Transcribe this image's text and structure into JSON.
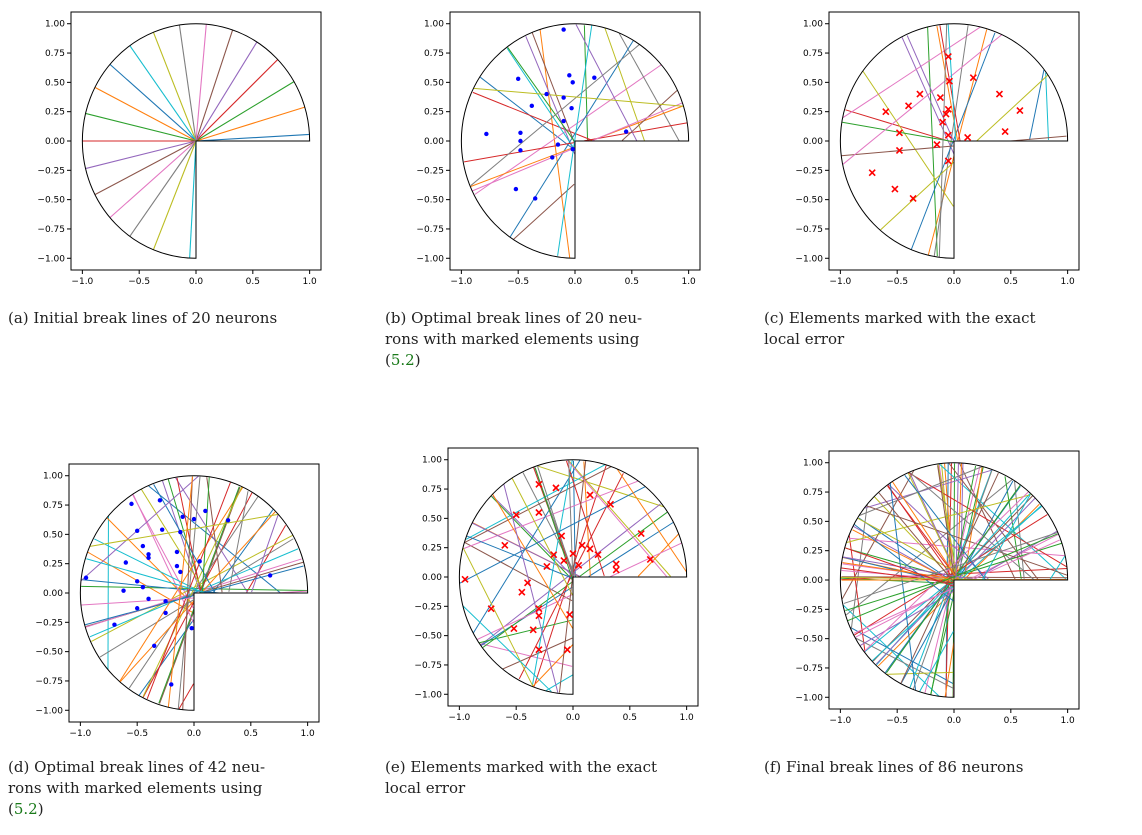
{
  "figure": {
    "panels": [
      {
        "caption_lines": [
          "(a) Initial break lines of 20 neurons"
        ],
        "chart_data": {
          "type": "line",
          "title": "",
          "xlabel": "",
          "ylabel": "",
          "xlim": [
            -1.1,
            1.1
          ],
          "ylim": [
            -1.1,
            1.1
          ],
          "xticks": [
            -1.0,
            -0.5,
            0.0,
            0.5,
            1.0
          ],
          "xtick_labels": [
            "−1.0",
            "−0.5",
            "0.0",
            "0.5",
            "1.0"
          ],
          "yticks": [
            1.0,
            0.75,
            0.5,
            0.25,
            0.0,
            -0.25,
            -0.5,
            -0.75,
            -1.0
          ],
          "ytick_labels": [
            "1.00",
            "0.75",
            "0.50",
            "0.25",
            "0.00",
            "−0.25",
            "−0.50",
            "−0.75",
            "−1.00"
          ],
          "domain": "three-quarter disk: radius 1 arc from 0° to 270°, boundary segments along positive x-axis and negative y-axis",
          "break_lines": {
            "count": 20,
            "description": "Equally spaced radial lines through the origin spanning the domain",
            "angles_deg": [
              3.2,
              16.8,
              30.4,
              44.0,
              57.6,
              71.2,
              84.8,
              98.4,
              112.0,
              125.6,
              139.2,
              152.8,
              166.4,
              180.0,
              193.6,
              207.2,
              220.8,
              234.4,
              248.0,
              266.8
            ]
          },
          "marked_elements": []
        }
      },
      {
        "caption_lines": [
          "(b) Optimal break lines of 20 neu-",
          "rons with marked elements using",
          "(5.2)"
        ],
        "chart_data": {
          "type": "scatter",
          "title": "",
          "xlabel": "",
          "ylabel": "",
          "xlim": [
            -1.1,
            1.1
          ],
          "ylim": [
            -1.1,
            1.1
          ],
          "xticks": [
            -1.0,
            -0.5,
            0.0,
            0.5,
            1.0
          ],
          "xtick_labels": [
            "−1.0",
            "−0.5",
            "0.0",
            "0.5",
            "1.0"
          ],
          "yticks": [
            1.0,
            0.75,
            0.5,
            0.25,
            0.0,
            -0.25,
            -0.5,
            -0.75,
            -1.0
          ],
          "ytick_labels": [
            "1.00",
            "0.75",
            "0.50",
            "0.25",
            "0.00",
            "−0.25",
            "−0.50",
            "−0.75",
            "−1.00"
          ],
          "domain": "three-quarter disk",
          "break_lines": {
            "count": 20,
            "description": "Optimized break lines (not necessarily through origin)"
          },
          "marker": {
            "shape": "dot",
            "color": "#0000ff"
          },
          "marked_elements": [
            [
              -0.5,
              0.53
            ],
            [
              -0.25,
              0.4
            ],
            [
              -0.38,
              0.3
            ],
            [
              -0.1,
              0.95
            ],
            [
              -0.05,
              0.56
            ],
            [
              -0.02,
              0.5
            ],
            [
              0.17,
              0.54
            ],
            [
              -0.1,
              0.37
            ],
            [
              -0.03,
              0.28
            ],
            [
              -0.1,
              0.17
            ],
            [
              -0.78,
              0.06
            ],
            [
              -0.48,
              0.07
            ],
            [
              -0.48,
              0.0
            ],
            [
              -0.48,
              -0.08
            ],
            [
              -0.15,
              -0.03
            ],
            [
              -0.2,
              -0.14
            ],
            [
              -0.02,
              -0.07
            ],
            [
              0.45,
              0.08
            ],
            [
              -0.52,
              -0.41
            ],
            [
              -0.35,
              -0.49
            ]
          ]
        }
      },
      {
        "caption_lines": [
          "(c) Elements marked with the exact",
          "local error"
        ],
        "chart_data": {
          "type": "scatter",
          "title": "",
          "xlabel": "",
          "ylabel": "",
          "xlim": [
            -1.1,
            1.1
          ],
          "ylim": [
            -1.1,
            1.1
          ],
          "xticks": [
            -1.0,
            -0.5,
            0.0,
            0.5,
            1.0
          ],
          "xtick_labels": [
            "−1.0",
            "−0.5",
            "0.0",
            "0.5",
            "1.0"
          ],
          "yticks": [
            1.0,
            0.75,
            0.5,
            0.25,
            0.0,
            -0.25,
            -0.5,
            -0.75,
            -1.0
          ],
          "ytick_labels": [
            "1.00",
            "0.75",
            "0.50",
            "0.25",
            "0.00",
            "−0.25",
            "−0.50",
            "−0.75",
            "−1.00"
          ],
          "domain": "three-quarter disk",
          "break_lines": {
            "count": 20,
            "description": "Same optimized break lines as panel (b)"
          },
          "marker": {
            "shape": "x",
            "color": "#ff0000"
          },
          "marked_elements": [
            [
              -0.05,
              0.72
            ],
            [
              -0.3,
              0.4
            ],
            [
              -0.04,
              0.51
            ],
            [
              0.17,
              0.54
            ],
            [
              0.4,
              0.4
            ],
            [
              -0.6,
              0.25
            ],
            [
              -0.4,
              0.3
            ],
            [
              -0.12,
              0.37
            ],
            [
              -0.05,
              0.27
            ],
            [
              -0.07,
              0.23
            ],
            [
              0.58,
              0.26
            ],
            [
              -0.1,
              0.16
            ],
            [
              -0.48,
              0.07
            ],
            [
              -0.05,
              0.05
            ],
            [
              0.12,
              0.03
            ],
            [
              0.45,
              0.08
            ],
            [
              -0.15,
              -0.03
            ],
            [
              -0.48,
              -0.08
            ],
            [
              -0.05,
              -0.17
            ],
            [
              -0.72,
              -0.27
            ],
            [
              -0.52,
              -0.41
            ],
            [
              -0.36,
              -0.49
            ]
          ]
        }
      },
      {
        "caption_lines": [
          "(d) Optimal break lines of 42 neu-",
          "rons with marked elements using",
          "(5.2)"
        ],
        "chart_data": {
          "type": "scatter",
          "title": "",
          "xlabel": "",
          "ylabel": "",
          "xlim": [
            -1.1,
            1.1
          ],
          "ylim": [
            -1.1,
            1.1
          ],
          "xticks": [
            -1.0,
            -0.5,
            0.0,
            0.5,
            1.0
          ],
          "xtick_labels": [
            "−1.0",
            "−0.5",
            "0.0",
            "0.5",
            "1.0"
          ],
          "yticks": [
            1.0,
            0.75,
            0.5,
            0.25,
            0.0,
            -0.25,
            -0.5,
            -0.75,
            -1.0
          ],
          "ytick_labels": [
            "1.00",
            "0.75",
            "0.50",
            "0.25",
            "0.00",
            "−0.25",
            "−0.50",
            "−0.75",
            "−1.00"
          ],
          "domain": "three-quarter disk",
          "break_lines": {
            "count": 42,
            "description": "Optimized break lines"
          },
          "marker": {
            "shape": "dot",
            "color": "#0000ff"
          },
          "marked_elements": [
            [
              -0.55,
              0.76
            ],
            [
              -0.3,
              0.79
            ],
            [
              -0.1,
              0.65
            ],
            [
              0.1,
              0.7
            ],
            [
              0.3,
              0.62
            ],
            [
              -0.5,
              0.53
            ],
            [
              -0.28,
              0.54
            ],
            [
              -0.12,
              0.52
            ],
            [
              0.0,
              0.63
            ],
            [
              -0.4,
              0.33
            ],
            [
              -0.45,
              0.4
            ],
            [
              -0.6,
              0.26
            ],
            [
              -0.4,
              0.3
            ],
            [
              -0.15,
              0.35
            ],
            [
              0.05,
              0.27
            ],
            [
              -0.15,
              0.23
            ],
            [
              -0.12,
              0.18
            ],
            [
              -0.95,
              0.13
            ],
            [
              -0.5,
              0.1
            ],
            [
              -0.45,
              0.05
            ],
            [
              -0.62,
              0.02
            ],
            [
              -0.4,
              -0.05
            ],
            [
              -0.25,
              -0.07
            ],
            [
              -0.5,
              -0.13
            ],
            [
              -0.25,
              -0.17
            ],
            [
              -0.02,
              -0.3
            ],
            [
              -0.7,
              -0.27
            ],
            [
              -0.35,
              -0.45
            ],
            [
              -0.2,
              -0.78
            ],
            [
              0.67,
              0.15
            ]
          ]
        }
      },
      {
        "caption_lines": [
          "(e) Elements marked with the exact",
          "local error"
        ],
        "chart_data": {
          "type": "scatter",
          "title": "",
          "xlabel": "",
          "ylabel": "",
          "xlim": [
            -1.1,
            1.1
          ],
          "ylim": [
            -1.1,
            1.1
          ],
          "xticks": [
            -1.0,
            -0.5,
            0.0,
            0.5,
            1.0
          ],
          "xtick_labels": [
            "−1.0",
            "−0.5",
            "0.0",
            "0.5",
            "1.0"
          ],
          "yticks": [
            1.0,
            0.75,
            0.5,
            0.25,
            0.0,
            -0.25,
            -0.5,
            -0.75,
            -1.0
          ],
          "ytick_labels": [
            "1.00",
            "0.75",
            "0.50",
            "0.25",
            "0.00",
            "−0.25",
            "−0.50",
            "−0.75",
            "−1.00"
          ],
          "domain": "three-quarter disk",
          "break_lines": {
            "count": 42,
            "description": "Same optimized break lines as panel (d)"
          },
          "marker": {
            "shape": "x",
            "color": "#ff0000"
          },
          "marked_elements": [
            [
              -0.3,
              0.79
            ],
            [
              -0.15,
              0.76
            ],
            [
              0.15,
              0.7
            ],
            [
              0.33,
              0.62
            ],
            [
              -0.5,
              0.53
            ],
            [
              -0.3,
              0.55
            ],
            [
              0.6,
              0.37
            ],
            [
              -0.6,
              0.27
            ],
            [
              -0.1,
              0.35
            ],
            [
              0.08,
              0.27
            ],
            [
              0.15,
              0.24
            ],
            [
              -0.17,
              0.19
            ],
            [
              0.0,
              0.2
            ],
            [
              0.22,
              0.19
            ],
            [
              -0.08,
              0.14
            ],
            [
              -0.23,
              0.09
            ],
            [
              0.05,
              0.1
            ],
            [
              0.38,
              0.11
            ],
            [
              0.38,
              0.06
            ],
            [
              0.68,
              0.15
            ],
            [
              -0.95,
              -0.02
            ],
            [
              -0.4,
              -0.05
            ],
            [
              -0.45,
              -0.13
            ],
            [
              -0.3,
              -0.27
            ],
            [
              -0.72,
              -0.27
            ],
            [
              -0.3,
              -0.33
            ],
            [
              -0.03,
              -0.32
            ],
            [
              -0.52,
              -0.44
            ],
            [
              -0.35,
              -0.45
            ],
            [
              -0.3,
              -0.62
            ],
            [
              -0.05,
              -0.62
            ]
          ]
        }
      },
      {
        "caption_lines": [
          "(f) Final break lines of 86 neurons"
        ],
        "chart_data": {
          "type": "line",
          "title": "",
          "xlabel": "",
          "ylabel": "",
          "xlim": [
            -1.1,
            1.1
          ],
          "ylim": [
            -1.1,
            1.1
          ],
          "xticks": [
            -1.0,
            -0.5,
            0.0,
            0.5,
            1.0
          ],
          "xtick_labels": [
            "−1.0",
            "−0.5",
            "0.0",
            "0.5",
            "1.0"
          ],
          "yticks": [
            1.0,
            0.75,
            0.5,
            0.25,
            0.0,
            -0.25,
            -0.5,
            -0.75,
            -1.0
          ],
          "ytick_labels": [
            "1.00",
            "0.75",
            "0.50",
            "0.25",
            "0.00",
            "−0.25",
            "−0.50",
            "−0.75",
            "−1.00"
          ],
          "domain": "three-quarter disk",
          "break_lines": {
            "count": 86,
            "description": "Final optimized break lines"
          },
          "marked_elements": []
        }
      }
    ],
    "line_colors": [
      "#1f77b4",
      "#ff7f0e",
      "#2ca02c",
      "#d62728",
      "#9467bd",
      "#8c564b",
      "#e377c2",
      "#7f7f7f",
      "#bcbd22",
      "#17becf"
    ]
  }
}
